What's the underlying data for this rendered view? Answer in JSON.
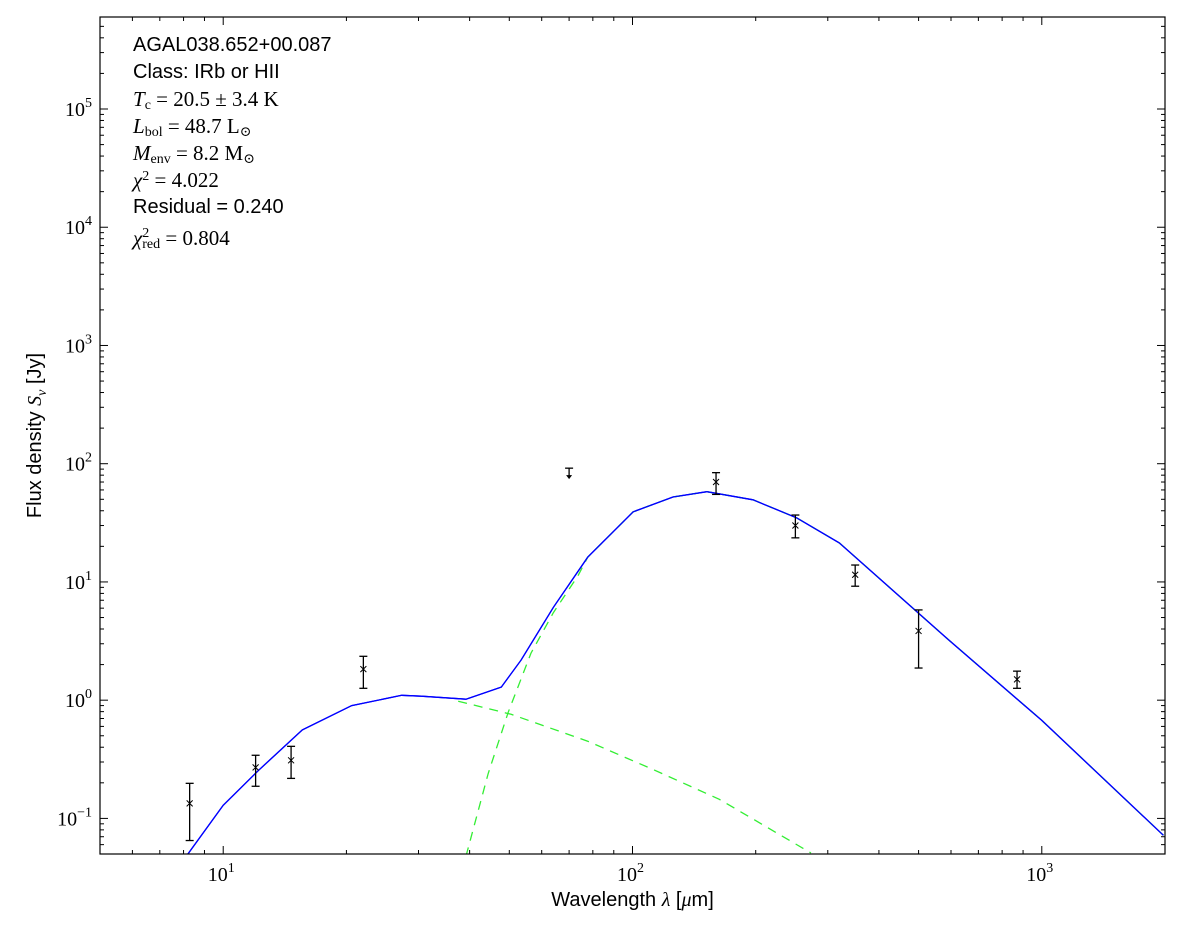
{
  "chart_data": {
    "type": "line",
    "xlabel": "Wavelength λ [μm]",
    "ylabel": "Flux density S_ν [Jy]",
    "xlabel_parts": {
      "pre": "Wavelength ",
      "sym": "λ",
      "post": " [",
      "unit_sym": "μ",
      "unit": "m]"
    },
    "ylabel_parts": {
      "pre": "Flux density ",
      "sym": "S",
      "sub": "ν",
      "post": " [Jy]"
    },
    "xscale": "log",
    "yscale": "log",
    "xlim": [
      5,
      2000
    ],
    "ylim": [
      0.05,
      600000
    ],
    "x_ticks": [
      {
        "value": 10,
        "base": "10",
        "exp": "1"
      },
      {
        "value": 100,
        "base": "10",
        "exp": "2"
      },
      {
        "value": 1000,
        "base": "10",
        "exp": "3"
      }
    ],
    "y_ticks": [
      {
        "value": 0.1,
        "base": "10",
        "exp": "−1"
      },
      {
        "value": 1,
        "base": "10",
        "exp": "0"
      },
      {
        "value": 10,
        "base": "10",
        "exp": "1"
      },
      {
        "value": 100,
        "base": "10",
        "exp": "2"
      },
      {
        "value": 1000,
        "base": "10",
        "exp": "3"
      },
      {
        "value": 10000,
        "base": "10",
        "exp": "4"
      },
      {
        "value": 100000,
        "base": "10",
        "exp": "5"
      }
    ],
    "grid": false,
    "colors": {
      "total": "#0000ff",
      "components": "#33ee33",
      "points": "#000000"
    },
    "series": [
      {
        "style": "solid",
        "color": "#0000ff",
        "x": [
          8.2,
          10,
          12.2,
          15.6,
          20.6,
          27.3,
          30.5,
          39.2,
          47.8,
          53.4,
          64.1,
          77.7,
          100.4,
          125.6,
          152,
          197,
          252,
          320,
          594,
          1000,
          1982
        ],
        "y": [
          0.05,
          0.129,
          0.255,
          0.56,
          0.9,
          1.1,
          1.08,
          1.02,
          1.29,
          2.18,
          6.1,
          16.2,
          39.2,
          52.3,
          58,
          49.5,
          34.8,
          21.4,
          3.2,
          0.675,
          0.072
        ]
      },
      {
        "style": "dashed",
        "color": "#33ee33",
        "x": [
          37.5,
          50.5,
          77.7,
          112,
          163,
          273
        ],
        "y": [
          0.98,
          0.76,
          0.45,
          0.26,
          0.145,
          0.051
        ]
      },
      {
        "style": "dashed",
        "color": "#33ee33",
        "x": [
          39.2,
          44.4,
          49.7,
          56.5,
          64.1,
          73.5,
          77.7,
          100.4,
          125.6,
          152,
          197,
          252,
          320,
          594,
          1000,
          1982
        ],
        "y": [
          0.048,
          0.24,
          0.79,
          2.5,
          5.5,
          11.2,
          16.2,
          39.2,
          52.3,
          58,
          49.5,
          34.8,
          21.4,
          3.2,
          0.675,
          0.072
        ]
      }
    ],
    "points": [
      {
        "x": 8.28,
        "y": 0.134,
        "ylo": 0.065,
        "yhi": 0.198
      },
      {
        "x": 12,
        "y": 0.27,
        "ylo": 0.187,
        "yhi": 0.342
      },
      {
        "x": 14.65,
        "y": 0.31,
        "ylo": 0.218,
        "yhi": 0.407
      },
      {
        "x": 22,
        "y": 1.83,
        "ylo": 1.26,
        "yhi": 2.35
      },
      {
        "x": 70,
        "y": 80,
        "upper_limit": true
      },
      {
        "x": 160,
        "y": 70,
        "ylo": 55,
        "yhi": 84
      },
      {
        "x": 250,
        "y": 30,
        "ylo": 23.6,
        "yhi": 36.8
      },
      {
        "x": 350,
        "y": 11.5,
        "ylo": 9.2,
        "yhi": 13.9
      },
      {
        "x": 500,
        "y": 3.85,
        "ylo": 1.87,
        "yhi": 5.8
      },
      {
        "x": 870,
        "y": 1.5,
        "ylo": 1.26,
        "yhi": 1.76
      }
    ],
    "annotations": {
      "source": "AGAL038.652+00.087",
      "class": "Class: IRb or HII",
      "tc": {
        "sym": "T",
        "sub": "c",
        "rest": " = 20.5 ± 3.4 K"
      },
      "lbol": {
        "sym": "L",
        "sub": "bol",
        "rest": " = 48.7 L",
        "rest_sub": "⊙"
      },
      "menv": {
        "sym": "M",
        "sub": "env",
        "rest": " = 8.2 M",
        "rest_sub": "⊙"
      },
      "chi2": {
        "sym": "χ",
        "sup": "2",
        "rest": " = 4.022"
      },
      "residual": "Residual = 0.240",
      "chi2red": {
        "sym": "χ",
        "sup": "2",
        "sub": "red",
        "rest": " = 0.804"
      }
    }
  }
}
